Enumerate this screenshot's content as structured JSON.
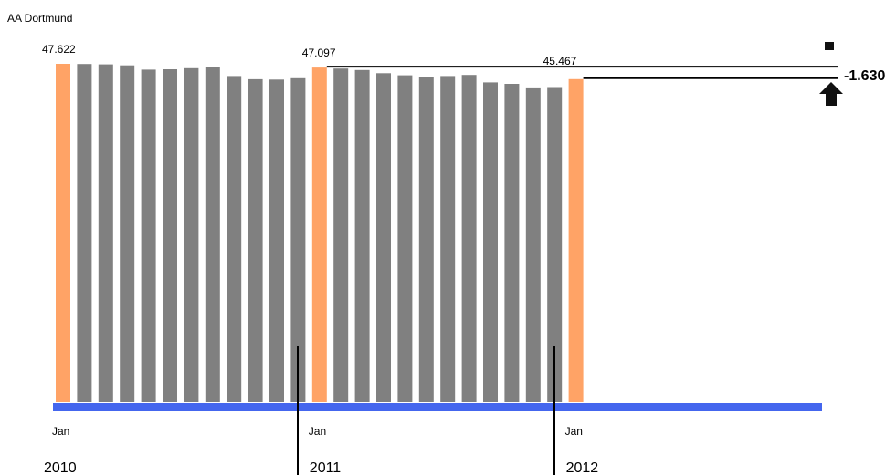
{
  "chart_data": {
    "type": "bar",
    "title": "AA Dortmund",
    "xlabel": "",
    "ylabel": "",
    "categories": [
      "Jan 2010",
      "Feb 2010",
      "Mar 2010",
      "Apr 2010",
      "May 2010",
      "Jun 2010",
      "Jul 2010",
      "Aug 2010",
      "Sep 2010",
      "Oct 2010",
      "Nov 2010",
      "Dec 2010",
      "Jan 2011",
      "Feb 2011",
      "Mar 2011",
      "Apr 2011",
      "May 2011",
      "Jun 2011",
      "Jul 2011",
      "Aug 2011",
      "Sep 2011",
      "Oct 2011",
      "Nov 2011",
      "Dec 2011",
      "Jan 2012"
    ],
    "values": [
      47622,
      47600,
      47550,
      47400,
      46800,
      46850,
      47000,
      47150,
      45900,
      45450,
      45400,
      45600,
      47097,
      46950,
      46750,
      46300,
      46000,
      45800,
      45900,
      46050,
      45000,
      44800,
      44300,
      44350,
      45467
    ],
    "highlight_color": "#ffa366",
    "bar_color": "#808080",
    "axis_color": "#4466ee",
    "ylim": [
      0,
      47622
    ],
    "x_tick_labels": [
      {
        "index": 0,
        "month": "Jan",
        "year": "2010"
      },
      {
        "index": 12,
        "month": "Jan",
        "year": "2011"
      },
      {
        "index": 24,
        "month": "Jan",
        "year": "2012"
      }
    ],
    "value_labels": [
      {
        "index": 0,
        "text": "47.622"
      },
      {
        "index": 12,
        "text": "47.097"
      },
      {
        "index": 24,
        "text": "45.467"
      }
    ],
    "difference": {
      "text": "-1.630",
      "direction": "down"
    },
    "grid": false
  }
}
